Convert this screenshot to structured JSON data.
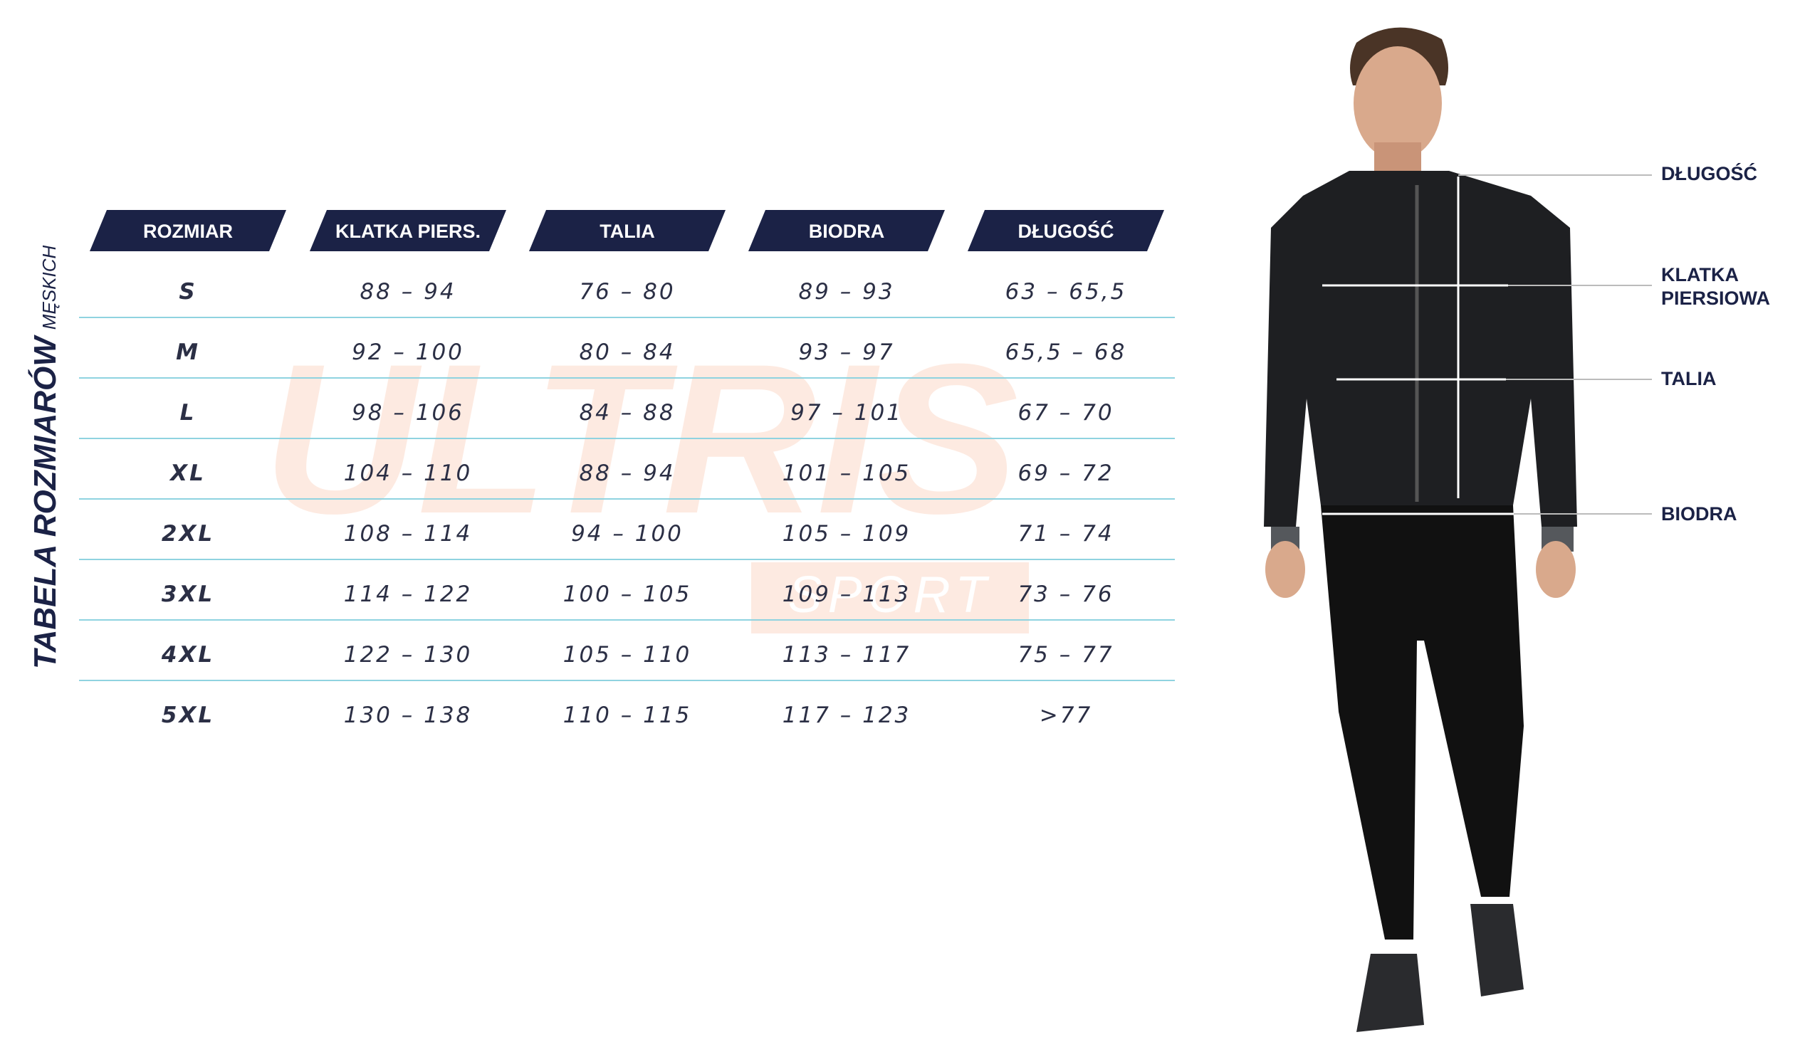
{
  "title": "TABELA ROZMIARÓW",
  "subtitle": "MĘSKICH",
  "watermark": {
    "brand": "ULTRIS",
    "sub": "SPORT"
  },
  "table": {
    "headers": [
      "ROZMIAR",
      "KLATKA PIERS.",
      "TALIA",
      "BIODRA",
      "DŁUGOŚĆ"
    ],
    "rows": [
      [
        "S",
        "88 – 94",
        "76 – 80",
        "89 – 93",
        "63 – 65,5"
      ],
      [
        "M",
        "92 – 100",
        "80 – 84",
        "93 – 97",
        "65,5 – 68"
      ],
      [
        "L",
        "98 – 106",
        "84 – 88",
        "97 – 101",
        "67 – 70"
      ],
      [
        "XL",
        "104 – 110",
        "88 – 94",
        "101 – 105",
        "69 – 72"
      ],
      [
        "2XL",
        "108 – 114",
        "94 – 100",
        "105 – 109",
        "71 – 74"
      ],
      [
        "3XL",
        "114 – 122",
        "100 – 105",
        "109 – 113",
        "73 – 76"
      ],
      [
        "4XL",
        "122 – 130",
        "105 – 110",
        "113 – 117",
        "75 – 77"
      ],
      [
        "5XL",
        "130 – 138",
        "110 – 115",
        "117 – 123",
        ">77"
      ]
    ]
  },
  "measurements": [
    "DŁUGOŚĆ",
    "KLATKA PIERSIOWA",
    "TALIA",
    "BIODRA"
  ]
}
